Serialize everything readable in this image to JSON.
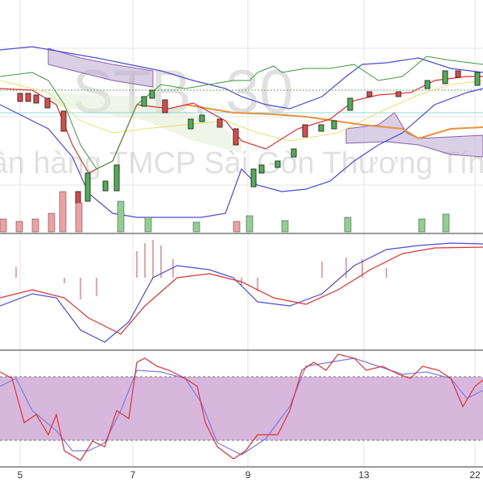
{
  "watermark": {
    "symbol": "STB, 30",
    "company": "Ngân hàng TMCP Sài Gòn Thương Tín"
  },
  "x_axis": {
    "labels": [
      "5",
      "7",
      "9",
      "13",
      "22"
    ]
  }
}
